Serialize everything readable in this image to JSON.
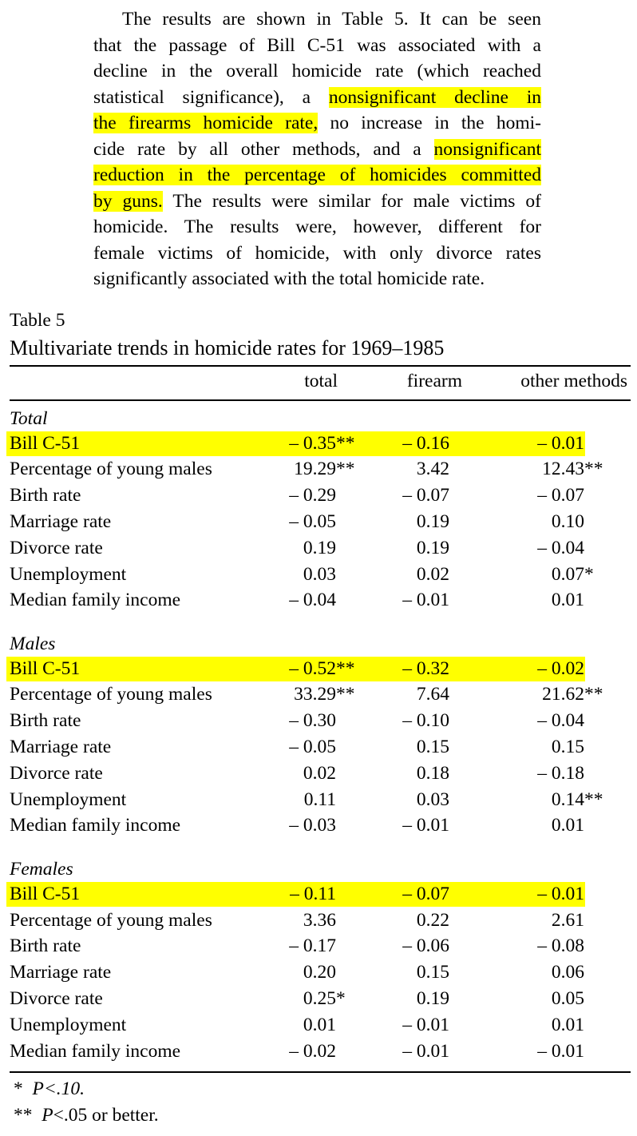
{
  "paragraph": [
    [
      {
        "t": "The results are shown in Table 5. It can be seen"
      }
    ],
    [
      {
        "t": "that the passage of Bill C-51 was associated with a"
      }
    ],
    [
      {
        "t": "decline in the overall homicide rate (which reached"
      }
    ],
    [
      {
        "t": "statistical significance), a "
      },
      {
        "t": "nonsignificant decline in",
        "hl": true
      }
    ],
    [
      {
        "t": "the firearms homicide rate,",
        "hl": true
      },
      {
        "t": " no increase in the homi-"
      }
    ],
    [
      {
        "t": "cide rate by all other methods, and a "
      },
      {
        "t": "nonsignificant",
        "hl": true
      }
    ],
    [
      {
        "t": "reduction in the percentage of homicides committed",
        "hl": true
      }
    ],
    [
      {
        "t": "by guns.",
        "hl": true
      },
      {
        "t": " The results were similar for male victims of"
      }
    ],
    [
      {
        "t": "homicide. The results were, however, different for"
      }
    ],
    [
      {
        "t": "female victims of homicide, with only divorce rates"
      }
    ],
    [
      {
        "t": "significantly associated with the total homicide rate."
      }
    ]
  ],
  "table": {
    "label": "Table 5",
    "title": "Multivariate trends in homicide rates for 1969–1985",
    "columns": [
      "total",
      "firearm",
      "other methods"
    ],
    "highlight_color": "#ffff00",
    "sections": [
      {
        "name": "Total",
        "rows": [
          {
            "label": "Bill C-51",
            "hl": true,
            "v": [
              [
                "– 0.35",
                "**"
              ],
              [
                "– 0.16",
                ""
              ],
              [
                "– 0.01",
                ""
              ]
            ]
          },
          {
            "label": "Percentage of young males",
            "v": [
              [
                "19.29",
                "**"
              ],
              [
                "3.42",
                ""
              ],
              [
                "12.43",
                "**"
              ]
            ]
          },
          {
            "label": "Birth rate",
            "v": [
              [
                "– 0.29",
                ""
              ],
              [
                "– 0.07",
                ""
              ],
              [
                "– 0.07",
                ""
              ]
            ]
          },
          {
            "label": "Marriage rate",
            "v": [
              [
                "– 0.05",
                ""
              ],
              [
                "0.19",
                ""
              ],
              [
                "0.10",
                ""
              ]
            ]
          },
          {
            "label": "Divorce rate",
            "v": [
              [
                "0.19",
                ""
              ],
              [
                "0.19",
                ""
              ],
              [
                "– 0.04",
                ""
              ]
            ]
          },
          {
            "label": "Unemployment",
            "v": [
              [
                "0.03",
                ""
              ],
              [
                "0.02",
                ""
              ],
              [
                "0.07",
                " *"
              ]
            ]
          },
          {
            "label": "Median family income",
            "v": [
              [
                "– 0.04",
                ""
              ],
              [
                "– 0.01",
                ""
              ],
              [
                "0.01",
                ""
              ]
            ]
          }
        ]
      },
      {
        "name": "Males",
        "rows": [
          {
            "label": "Bill C-51",
            "hl": true,
            "v": [
              [
                "– 0.52",
                "**"
              ],
              [
                "– 0.32",
                ""
              ],
              [
                "– 0.02",
                ""
              ]
            ]
          },
          {
            "label": "Percentage of young males",
            "v": [
              [
                "33.29",
                "**"
              ],
              [
                "7.64",
                ""
              ],
              [
                "21.62",
                "**"
              ]
            ]
          },
          {
            "label": "Birth rate",
            "v": [
              [
                "– 0.30",
                ""
              ],
              [
                "– 0.10",
                ""
              ],
              [
                "– 0.04",
                ""
              ]
            ]
          },
          {
            "label": "Marriage rate",
            "v": [
              [
                "– 0.05",
                ""
              ],
              [
                "0.15",
                ""
              ],
              [
                "0.15",
                ""
              ]
            ]
          },
          {
            "label": "Divorce rate",
            "v": [
              [
                "0.02",
                ""
              ],
              [
                "0.18",
                ""
              ],
              [
                "– 0.18",
                ""
              ]
            ]
          },
          {
            "label": "Unemployment",
            "v": [
              [
                "0.11",
                ""
              ],
              [
                "0.03",
                ""
              ],
              [
                "0.14",
                "**"
              ]
            ]
          },
          {
            "label": "Median family income",
            "v": [
              [
                "– 0.03",
                ""
              ],
              [
                "– 0.01",
                ""
              ],
              [
                "0.01",
                ""
              ]
            ]
          }
        ]
      },
      {
        "name": "Females",
        "rows": [
          {
            "label": "Bill C-51",
            "hl": true,
            "v": [
              [
                "– 0.11",
                ""
              ],
              [
                "– 0.07",
                ""
              ],
              [
                "– 0.01",
                ""
              ]
            ]
          },
          {
            "label": "Percentage of young males",
            "v": [
              [
                "3.36",
                ""
              ],
              [
                "0.22",
                ""
              ],
              [
                "2.61",
                ""
              ]
            ]
          },
          {
            "label": "Birth rate",
            "v": [
              [
                "– 0.17",
                ""
              ],
              [
                "– 0.06",
                ""
              ],
              [
                "– 0.08",
                ""
              ]
            ]
          },
          {
            "label": "Marriage rate",
            "v": [
              [
                "0.20",
                ""
              ],
              [
                "0.15",
                ""
              ],
              [
                "0.06",
                ""
              ]
            ]
          },
          {
            "label": "Divorce rate",
            "v": [
              [
                "0.25",
                " *"
              ],
              [
                "0.19",
                ""
              ],
              [
                "0.05",
                ""
              ]
            ]
          },
          {
            "label": "Unemployment",
            "v": [
              [
                "0.01",
                ""
              ],
              [
                "– 0.01",
                ""
              ],
              [
                "0.01",
                ""
              ]
            ]
          },
          {
            "label": "Median family income",
            "v": [
              [
                "– 0.02",
                ""
              ],
              [
                "– 0.01",
                ""
              ],
              [
                "– 0.01",
                ""
              ]
            ]
          }
        ]
      }
    ],
    "footnotes": [
      {
        "mark": "*",
        "text": "P<.10."
      },
      {
        "mark": "**",
        "text": "P<.05 or better."
      }
    ]
  }
}
